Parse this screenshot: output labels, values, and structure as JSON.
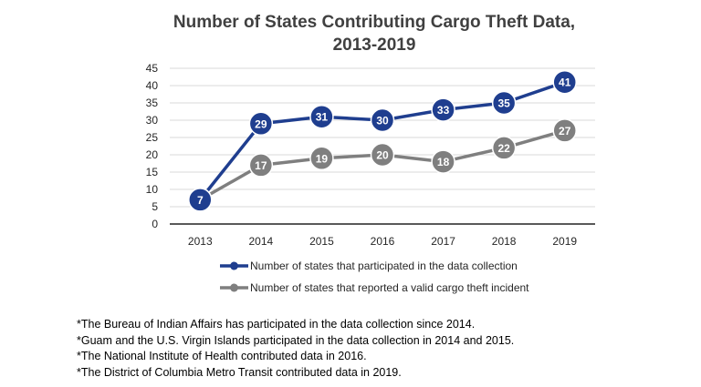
{
  "chart_data": {
    "type": "line",
    "title_lines": [
      "Number of States Contributing Cargo Theft Data,",
      "2013-2019"
    ],
    "xlabel": "",
    "ylabel": "",
    "x": [
      "2013",
      "2014",
      "2015",
      "2016",
      "2017",
      "2018",
      "2019"
    ],
    "ylim": [
      0,
      45
    ],
    "yticks": [
      0,
      5,
      10,
      15,
      20,
      25,
      30,
      35,
      40,
      45
    ],
    "grid": true,
    "legend_position": "bottom",
    "series": [
      {
        "name": "Number of states that participated in the data collection",
        "values": [
          7,
          29,
          31,
          30,
          33,
          35,
          41
        ],
        "color": "#1f3e8f"
      },
      {
        "name": "Number of states that reported a valid cargo theft incident",
        "values": [
          7,
          17,
          19,
          20,
          18,
          22,
          27
        ],
        "color": "#7f7f7f"
      }
    ]
  },
  "notes": [
    "*The Bureau of Indian Affairs has participated in the data collection since 2014.",
    "*Guam and the U.S. Virgin Islands participated in the data collection in 2014 and 2015.",
    "*The National Institute of Health contributed data in 2016.",
    "*The District of Columbia Metro Transit contributed data in 2019."
  ]
}
